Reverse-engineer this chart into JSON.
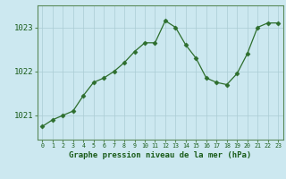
{
  "x": [
    0,
    1,
    2,
    3,
    4,
    5,
    6,
    7,
    8,
    9,
    10,
    11,
    12,
    13,
    14,
    15,
    16,
    17,
    18,
    19,
    20,
    21,
    22,
    23
  ],
  "y": [
    1020.75,
    1020.9,
    1021.0,
    1021.1,
    1021.45,
    1021.75,
    1021.85,
    1022.0,
    1022.2,
    1022.45,
    1022.65,
    1022.65,
    1023.15,
    1023.0,
    1022.6,
    1022.3,
    1021.85,
    1021.75,
    1021.7,
    1021.95,
    1022.4,
    1023.0,
    1023.1,
    1023.1
  ],
  "line_color": "#2d6e2d",
  "marker": "D",
  "marker_size": 2.5,
  "bg_color": "#cce8f0",
  "grid_color": "#aaccd4",
  "xlabel": "Graphe pression niveau de la mer (hPa)",
  "xlabel_color": "#1a5c1a",
  "tick_color": "#1a5c1a",
  "yticks": [
    1021,
    1022,
    1023
  ],
  "ylim": [
    1020.45,
    1023.5
  ],
  "xlim": [
    -0.5,
    23.5
  ],
  "xticks": [
    0,
    1,
    2,
    3,
    4,
    5,
    6,
    7,
    8,
    9,
    10,
    11,
    12,
    13,
    14,
    15,
    16,
    17,
    18,
    19,
    20,
    21,
    22,
    23
  ]
}
